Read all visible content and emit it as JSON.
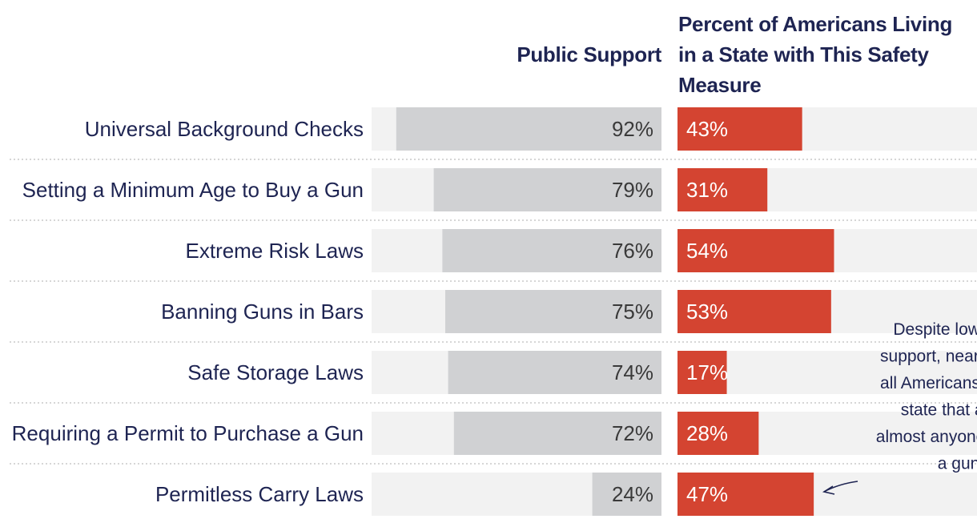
{
  "header": {
    "left": "Public Support",
    "right_lines": [
      "Percent of Americans Living",
      "in a State with This Safety",
      "Measure"
    ]
  },
  "colors": {
    "text": "#1e2452",
    "support_bar": "#d0d1d3",
    "track": "#f2f2f2",
    "state_bar": "#d44431",
    "divider": "#bdbdbd"
  },
  "annotation": {
    "lines": [
      "Despite low public",
      "support, nearly half of",
      "all Americans live in a",
      "state that allows",
      "almost anyone to carry",
      "a gun."
    ],
    "target": "Permitless Carry Laws"
  },
  "chart_data": {
    "type": "bar",
    "categories": [
      "Universal Background Checks",
      "Setting a Minimum Age to Buy a Gun",
      "Extreme Risk Laws",
      "Banning Guns in Bars",
      "Safe Storage Laws",
      "Requiring a Permit to Purchase a Gun",
      "Permitless Carry Laws"
    ],
    "series": [
      {
        "name": "Public Support",
        "values": [
          92,
          79,
          76,
          75,
          74,
          72,
          24
        ]
      },
      {
        "name": "Percent of Americans Living in a State with This Safety Measure",
        "values": [
          43,
          31,
          54,
          53,
          17,
          28,
          47
        ]
      }
    ],
    "unit": "%",
    "xlim": [
      0,
      100
    ]
  }
}
